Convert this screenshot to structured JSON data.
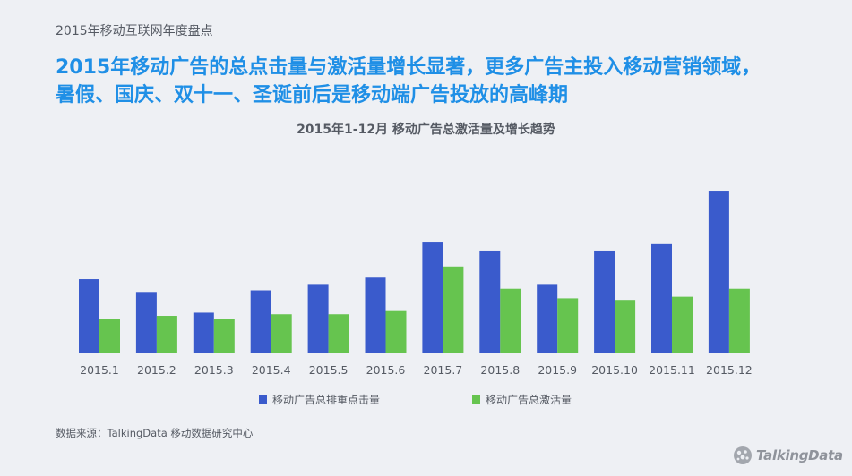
{
  "header": {
    "section_label": "2015年移动互联网年度盘点"
  },
  "headline": {
    "line1": "2015年移动广告的总点击量与激活量增长显著，更多广告主投入移动营销领域，",
    "line2": "暑假、国庆、双十一、圣诞前后是移动端广告投放的高峰期"
  },
  "chart_data": {
    "type": "bar",
    "title": "2015年1-12月 移动广告总激活量及增长趋势",
    "categories": [
      "2015.1",
      "2015.2",
      "2015.3",
      "2015.4",
      "2015.5",
      "2015.6",
      "2015.7",
      "2015.8",
      "2015.9",
      "2015.10",
      "2015.11",
      "2015.12"
    ],
    "series": [
      {
        "name": "移动广告总排重点击量",
        "color": "#3a5bcc",
        "values": [
          46,
          38,
          25,
          39,
          43,
          47,
          69,
          64,
          43,
          64,
          68,
          101
        ]
      },
      {
        "name": "移动广告总激活量",
        "color": "#66c44f",
        "values": [
          21,
          23,
          21,
          24,
          24,
          26,
          54,
          40,
          34,
          33,
          35,
          40
        ]
      }
    ],
    "ylim": [
      0,
      110
    ],
    "grid": false,
    "legend_position": "bottom",
    "xlabel": "",
    "ylabel": ""
  },
  "footer": {
    "source": "数据来源：TalkingData 移动数据研究中心",
    "logo_text": "TalkingData",
    "logo_color": "#8f939b"
  }
}
